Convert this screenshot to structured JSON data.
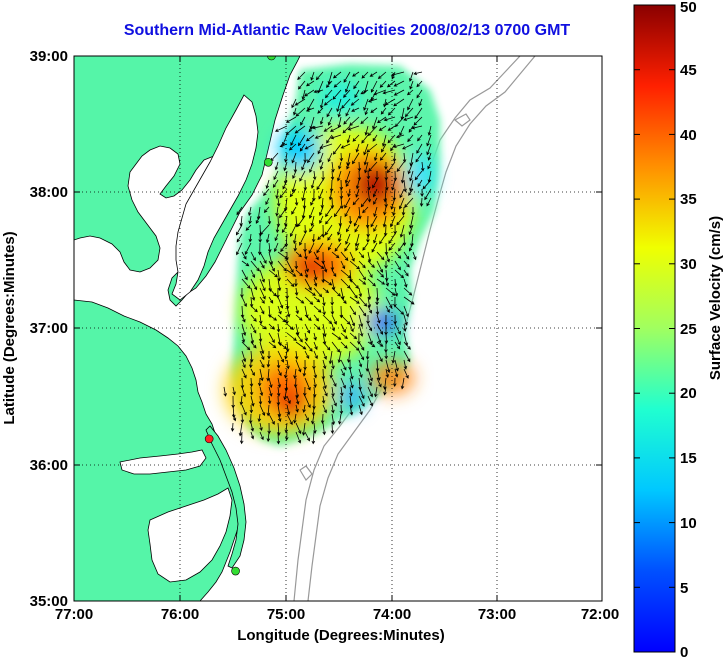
{
  "title": "Southern Mid-Atlantic Raw Velocities 2008/02/13 0700 GMT",
  "axes": {
    "xlabel": "Longitude (Degrees:Minutes)",
    "ylabel": "Latitude (Degrees:Minutes)",
    "x_ticks": [
      "77:00",
      "76:00",
      "75:00",
      "74:00",
      "73:00",
      "72:00"
    ],
    "y_ticks": [
      "39:00",
      "38:00",
      "37:00",
      "36:00",
      "35:00"
    ],
    "x_range": [
      -77,
      -72
    ],
    "y_range": [
      35,
      39
    ]
  },
  "colorbar": {
    "label": "Surface Velocity (cm/s)",
    "ticks": [
      "0",
      "5",
      "10",
      "15",
      "20",
      "25",
      "30",
      "35",
      "40",
      "45",
      "50"
    ],
    "range": [
      0,
      50
    ],
    "colormap": "jet"
  },
  "colors": {
    "land": "#55f5a8",
    "title": "#1010e0",
    "station_active": "#33dd33",
    "station_highlight": "#ff2020"
  },
  "stations": [
    {
      "lon": -75.13,
      "lat": 39.0,
      "status": "active"
    },
    {
      "lon": -75.16,
      "lat": 38.22,
      "status": "active"
    },
    {
      "lon": -75.72,
      "lat": 36.19,
      "status": "highlight"
    },
    {
      "lon": -75.47,
      "lat": 35.22,
      "status": "active"
    }
  ],
  "velocity_hotspots": [
    {
      "lon": -74.2,
      "lat": 37.95,
      "speed": 47
    },
    {
      "lon": -74.7,
      "lat": 37.4,
      "speed": 40
    },
    {
      "lon": -75.05,
      "lat": 36.45,
      "speed": 42
    },
    {
      "lon": -73.9,
      "lat": 36.8,
      "speed": 36
    },
    {
      "lon": -74.25,
      "lat": 36.95,
      "speed": 8
    },
    {
      "lon": -75.0,
      "lat": 38.3,
      "speed": 10
    },
    {
      "lon": -74.6,
      "lat": 36.55,
      "speed": 9
    }
  ]
}
